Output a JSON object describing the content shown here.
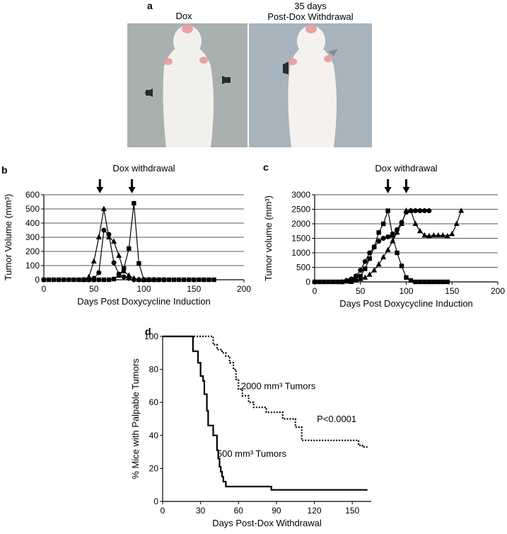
{
  "panel_a": {
    "letter": "a",
    "left_caption": "Dox",
    "right_caption_line1": "35 days",
    "right_caption_line2": "Post-Dox Withdrawal",
    "photo_bg_left": "#a9b0b0",
    "photo_bg_right": "#a7b3bd",
    "mouse_color": "#f2f0ec"
  },
  "chart_data": [
    {
      "panel": "b",
      "type": "line",
      "title": "Dox withdrawal",
      "xlabel": "Days Post Doxycycline Induction",
      "ylabel": "Tumor Volume (mm³)",
      "xlim": [
        0,
        200
      ],
      "ylim": [
        0,
        600
      ],
      "xticks": [
        0,
        50,
        100,
        150,
        200
      ],
      "yticks": [
        0,
        100,
        200,
        300,
        400,
        500,
        600
      ],
      "grid": "horizontal",
      "arrows_x": [
        56,
        88
      ],
      "series": [
        {
          "marker": "triangle",
          "x": [
            40,
            45,
            50,
            55,
            60,
            65,
            70,
            75,
            80,
            85,
            90,
            95,
            100,
            105,
            110
          ],
          "y": [
            0,
            20,
            130,
            300,
            500,
            300,
            270,
            170,
            60,
            30,
            10,
            0,
            0,
            0,
            0
          ]
        },
        {
          "marker": "circle",
          "x": [
            40,
            45,
            50,
            55,
            60,
            65,
            70,
            75,
            80,
            85,
            90,
            95,
            100,
            105,
            110,
            115,
            120
          ],
          "y": [
            0,
            0,
            10,
            50,
            350,
            320,
            120,
            40,
            20,
            10,
            0,
            0,
            0,
            0,
            0,
            0,
            0
          ]
        },
        {
          "marker": "square",
          "x": [
            0,
            5,
            10,
            15,
            20,
            25,
            30,
            35,
            40,
            45,
            50,
            55,
            60,
            65,
            70,
            75,
            80,
            85,
            90,
            95,
            100,
            105,
            110,
            115,
            120,
            125,
            130,
            135,
            140,
            145,
            150,
            155,
            160,
            165,
            170
          ],
          "y": [
            0,
            0,
            0,
            0,
            0,
            0,
            0,
            0,
            0,
            0,
            0,
            0,
            0,
            0,
            5,
            30,
            80,
            220,
            540,
            115,
            0,
            0,
            0,
            0,
            0,
            0,
            0,
            0,
            0,
            0,
            0,
            0,
            0,
            0,
            0
          ]
        }
      ]
    },
    {
      "panel": "c",
      "type": "line",
      "title": "Dox withdrawal",
      "xlabel": "Days Post Doxycycline Induction",
      "ylabel": "Tumor volume (mm³)",
      "xlim": [
        0,
        200
      ],
      "ylim": [
        0,
        3000
      ],
      "xticks": [
        0,
        50,
        100,
        150,
        200
      ],
      "yticks": [
        0,
        500,
        1000,
        1500,
        2000,
        2500,
        3000
      ],
      "grid": "horizontal",
      "arrows_x": [
        80,
        100
      ],
      "series": [
        {
          "marker": "square",
          "x": [
            0,
            5,
            10,
            15,
            20,
            25,
            30,
            35,
            40,
            45,
            50,
            55,
            60,
            65,
            70,
            75,
            80,
            85,
            90,
            95,
            100,
            105,
            110,
            115,
            120,
            125,
            130,
            135,
            140,
            145
          ],
          "y": [
            0,
            0,
            0,
            0,
            0,
            0,
            0,
            20,
            50,
            100,
            200,
            450,
            800,
            1200,
            1700,
            2000,
            2450,
            1600,
            1000,
            550,
            150,
            50,
            0,
            0,
            0,
            0,
            0,
            0,
            0,
            0
          ]
        },
        {
          "marker": "circle",
          "x": [
            30,
            35,
            40,
            45,
            50,
            55,
            60,
            65,
            70,
            75,
            80,
            85,
            90,
            95,
            100,
            105,
            110,
            115,
            120,
            125
          ],
          "y": [
            0,
            50,
            100,
            200,
            400,
            700,
            1000,
            1200,
            1400,
            1500,
            1550,
            1650,
            1800,
            2050,
            2400,
            2450,
            2450,
            2450,
            2450,
            2450
          ]
        },
        {
          "marker": "triangle",
          "x": [
            40,
            45,
            50,
            55,
            60,
            65,
            70,
            75,
            80,
            85,
            90,
            95,
            100,
            105,
            110,
            115,
            120,
            125,
            130,
            135,
            140,
            145,
            150,
            155,
            160
          ],
          "y": [
            0,
            50,
            100,
            150,
            250,
            400,
            600,
            850,
            1100,
            1400,
            1700,
            2000,
            2450,
            2450,
            2000,
            1750,
            1600,
            1580,
            1600,
            1600,
            1600,
            1580,
            1650,
            2000,
            2450
          ]
        }
      ]
    },
    {
      "panel": "d",
      "type": "line",
      "title": "",
      "xlabel": "Days Post-Dox Withdrawal",
      "ylabel": "% Mice with Palpable Tumors",
      "xlim": [
        0,
        165
      ],
      "ylim": [
        0,
        100
      ],
      "xticks": [
        0,
        30,
        60,
        90,
        120,
        150
      ],
      "yticks": [
        0,
        20,
        40,
        60,
        80,
        100
      ],
      "grid": "none",
      "annotations": [
        {
          "text": "2000 mm³ Tumors",
          "x": 62,
          "y": 68
        },
        {
          "text": "P<0.0001",
          "x": 122,
          "y": 48
        },
        {
          "text": "500 mm³ Tumors",
          "x": 43,
          "y": 27
        }
      ],
      "series": [
        {
          "name": "2000 mm³ Tumors",
          "style": "dotted",
          "x": [
            0,
            38,
            40,
            43,
            47,
            50,
            53,
            56,
            58,
            60,
            63,
            68,
            72,
            76,
            82,
            87,
            95,
            100,
            105,
            110,
            120,
            130,
            145,
            155,
            158,
            162
          ],
          "y": [
            100,
            100,
            95,
            92,
            90,
            88,
            84,
            80,
            74,
            68,
            64,
            60,
            57,
            57,
            54,
            54,
            50,
            50,
            45,
            37,
            37,
            37,
            37,
            34,
            33,
            33
          ]
        },
        {
          "name": "500 mm³ Tumors",
          "style": "solid",
          "x": [
            0,
            20,
            24,
            28,
            30,
            32,
            33,
            35,
            36,
            40,
            43,
            44,
            45,
            46,
            47,
            48,
            50,
            80,
            86,
            90,
            120,
            162
          ],
          "y": [
            100,
            100,
            91,
            84,
            76,
            73,
            65,
            55,
            46,
            40,
            31,
            26,
            21,
            18,
            15,
            12,
            9,
            9,
            7,
            7,
            7,
            7
          ]
        }
      ]
    }
  ]
}
